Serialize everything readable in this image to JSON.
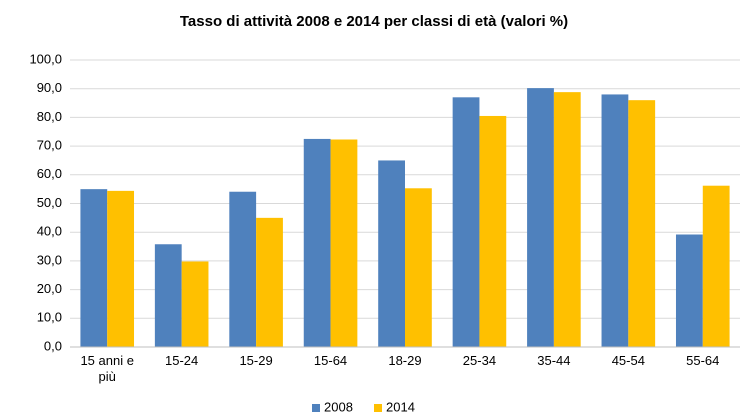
{
  "chart_data": {
    "type": "bar",
    "title": "Tasso di attività 2008 e 2014 per classi di età (valori %)",
    "categories": [
      "15 anni e più",
      "15-24",
      "15-29",
      "15-64",
      "18-29",
      "25-34",
      "35-44",
      "45-54",
      "55-64"
    ],
    "series": [
      {
        "name": "2008",
        "color": "#4f81bd",
        "values": [
          55.0,
          35.8,
          54.1,
          72.5,
          65.0,
          87.0,
          90.2,
          88.0,
          39.2
        ]
      },
      {
        "name": "2014",
        "color": "#ffc000",
        "values": [
          54.4,
          29.8,
          45.0,
          72.3,
          55.3,
          80.5,
          88.8,
          86.0,
          56.2
        ]
      }
    ],
    "ylim": [
      0,
      100
    ],
    "yticks": [
      {
        "value": 0,
        "label": "0,0"
      },
      {
        "value": 10,
        "label": "10,0"
      },
      {
        "value": 20,
        "label": "20,0"
      },
      {
        "value": 30,
        "label": "30,0"
      },
      {
        "value": 40,
        "label": "40,0"
      },
      {
        "value": 50,
        "label": "50,0"
      },
      {
        "value": 60,
        "label": "60,0"
      },
      {
        "value": 70,
        "label": "70,0"
      },
      {
        "value": 80,
        "label": "80,0"
      },
      {
        "value": 90,
        "label": "90,0"
      },
      {
        "value": 100,
        "label": "100,0"
      }
    ],
    "grid": true,
    "legend": "bottom"
  }
}
